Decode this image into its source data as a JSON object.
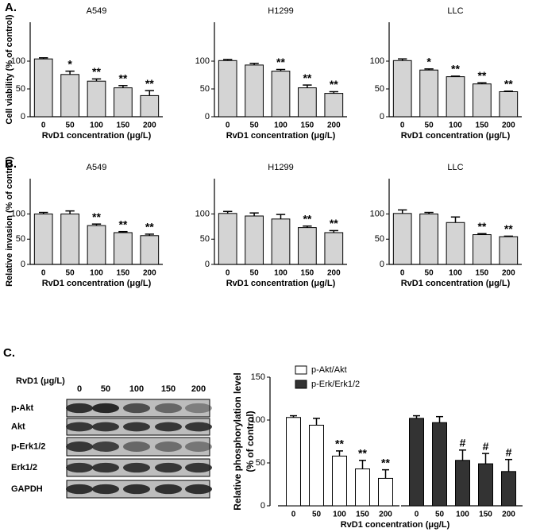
{
  "chart_data": [
    {
      "type": "bar",
      "panel_label": "A.",
      "title": "A549",
      "ylabel": "Cell viability (% of control)",
      "xlabel": "RvD1 concentration (μg/L)",
      "categories": [
        "0",
        "50",
        "100",
        "150",
        "200"
      ],
      "values": [
        104,
        76,
        64,
        52,
        38
      ],
      "errors": [
        2,
        6,
        4,
        4,
        9
      ],
      "annotations": [
        null,
        "*",
        "**",
        "**",
        "**"
      ],
      "color": "#d4d4d4",
      "ylim": [
        0,
        170
      ],
      "yticks": [
        0,
        50,
        100
      ]
    },
    {
      "type": "bar",
      "title": "H1299",
      "xlabel": "RvD1 concentration (μg/L)",
      "categories": [
        "0",
        "50",
        "100",
        "150",
        "200"
      ],
      "values": [
        101,
        93,
        82,
        52,
        42
      ],
      "errors": [
        2,
        3,
        3,
        5,
        3
      ],
      "annotations": [
        null,
        null,
        "**",
        "**",
        "**"
      ],
      "color": "#d4d4d4",
      "ylim": [
        0,
        170
      ],
      "yticks": [
        0,
        50,
        100
      ]
    },
    {
      "type": "bar",
      "title": "LLC",
      "xlabel": "RvD1 concentration (μg/L)",
      "categories": [
        "0",
        "50",
        "100",
        "150",
        "200"
      ],
      "values": [
        101,
        84,
        72,
        59,
        45
      ],
      "errors": [
        3,
        2,
        1,
        2,
        1
      ],
      "annotations": [
        null,
        "*",
        "**",
        "**",
        "**"
      ],
      "color": "#d4d4d4",
      "ylim": [
        0,
        170
      ],
      "yticks": [
        0,
        50,
        100
      ]
    },
    {
      "type": "bar",
      "panel_label": "B.",
      "title": "A549",
      "ylabel": "Relative invasion (% of control)",
      "xlabel": "RvD1 concentration (μg/L)",
      "categories": [
        "0",
        "50",
        "100",
        "150",
        "200"
      ],
      "values": [
        100,
        100,
        77,
        63,
        57
      ],
      "errors": [
        3,
        6,
        3,
        2,
        3
      ],
      "annotations": [
        null,
        null,
        "**",
        "**",
        "**"
      ],
      "color": "#d4d4d4",
      "ylim": [
        0,
        170
      ],
      "yticks": [
        0,
        50,
        100
      ]
    },
    {
      "type": "bar",
      "title": "H1299",
      "xlabel": "RvD1 concentration (μg/L)",
      "categories": [
        "0",
        "50",
        "100",
        "150",
        "200"
      ],
      "values": [
        101,
        96,
        90,
        73,
        63
      ],
      "errors": [
        4,
        6,
        9,
        3,
        4
      ],
      "annotations": [
        null,
        null,
        null,
        "**",
        "**"
      ],
      "color": "#d4d4d4",
      "ylim": [
        0,
        170
      ],
      "yticks": [
        0,
        50,
        100
      ]
    },
    {
      "type": "bar",
      "title": "LLC",
      "xlabel": "RvD1 concentration (μg/L)",
      "categories": [
        "0",
        "50",
        "100",
        "150",
        "200"
      ],
      "values": [
        101,
        100,
        83,
        59,
        55
      ],
      "errors": [
        7,
        3,
        11,
        2,
        1
      ],
      "annotations": [
        null,
        null,
        null,
        "**",
        "**"
      ],
      "color": "#d4d4d4",
      "ylim": [
        0,
        170
      ],
      "yticks": [
        0,
        50,
        100
      ]
    },
    {
      "type": "grouped-bar",
      "panel_label": "C.",
      "ylabel": "Relative phosphorylation level",
      "ylabel2": "(% of control)",
      "xlabel": "RvD1 concentration (μg/L)",
      "categories": [
        "0",
        "50",
        "100",
        "150",
        "200"
      ],
      "ylim": [
        0,
        150
      ],
      "yticks": [
        0,
        50,
        100,
        150
      ],
      "series": [
        {
          "name": "p-Akt/Akt",
          "color": "#ffffff",
          "values": [
            103,
            94,
            58,
            43,
            32
          ],
          "errors": [
            2,
            8,
            6,
            10,
            10
          ],
          "annotations": [
            null,
            null,
            "**",
            "**",
            "**"
          ]
        },
        {
          "name": "p-Erk/Erk1/2",
          "color": "#333333",
          "values": [
            102,
            97,
            53,
            49,
            40
          ],
          "errors": [
            3,
            7,
            12,
            12,
            14
          ],
          "annotations": [
            null,
            null,
            "#",
            "#",
            "#"
          ]
        }
      ]
    }
  ],
  "blot": {
    "header": "RvD1 (μg/L)",
    "lanes": [
      "0",
      "50",
      "100",
      "150",
      "200"
    ],
    "rows": [
      "p-Akt",
      "Akt",
      "p-Erk1/2",
      "Erk1/2",
      "GAPDH"
    ]
  }
}
